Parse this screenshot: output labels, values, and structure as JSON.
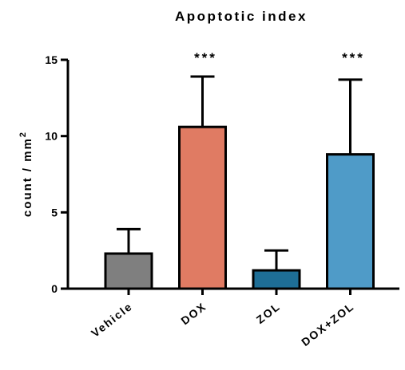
{
  "chart_data": {
    "type": "bar",
    "title": "Apoptotic index",
    "xlabel": "",
    "ylabel": "count / mm",
    "ylabel_superscript": "2",
    "ylim": [
      0,
      15
    ],
    "yticks": [
      0,
      5,
      10,
      15
    ],
    "ytick_labels": [
      "0",
      "5",
      "10",
      "15"
    ],
    "categories": [
      "Vehicle",
      "DOX",
      "ZOL",
      "DOX+ZOL"
    ],
    "values": [
      2.3,
      10.6,
      1.2,
      8.8
    ],
    "errors": [
      1.6,
      3.3,
      1.3,
      4.9
    ],
    "bar_colors": [
      "#7f7f7f",
      "#e07b63",
      "#1e6e96",
      "#4f9bc8"
    ],
    "annotations": [
      "",
      "***",
      "",
      "***"
    ],
    "grid": false,
    "legend": "none",
    "error_bars": "upper-only"
  }
}
